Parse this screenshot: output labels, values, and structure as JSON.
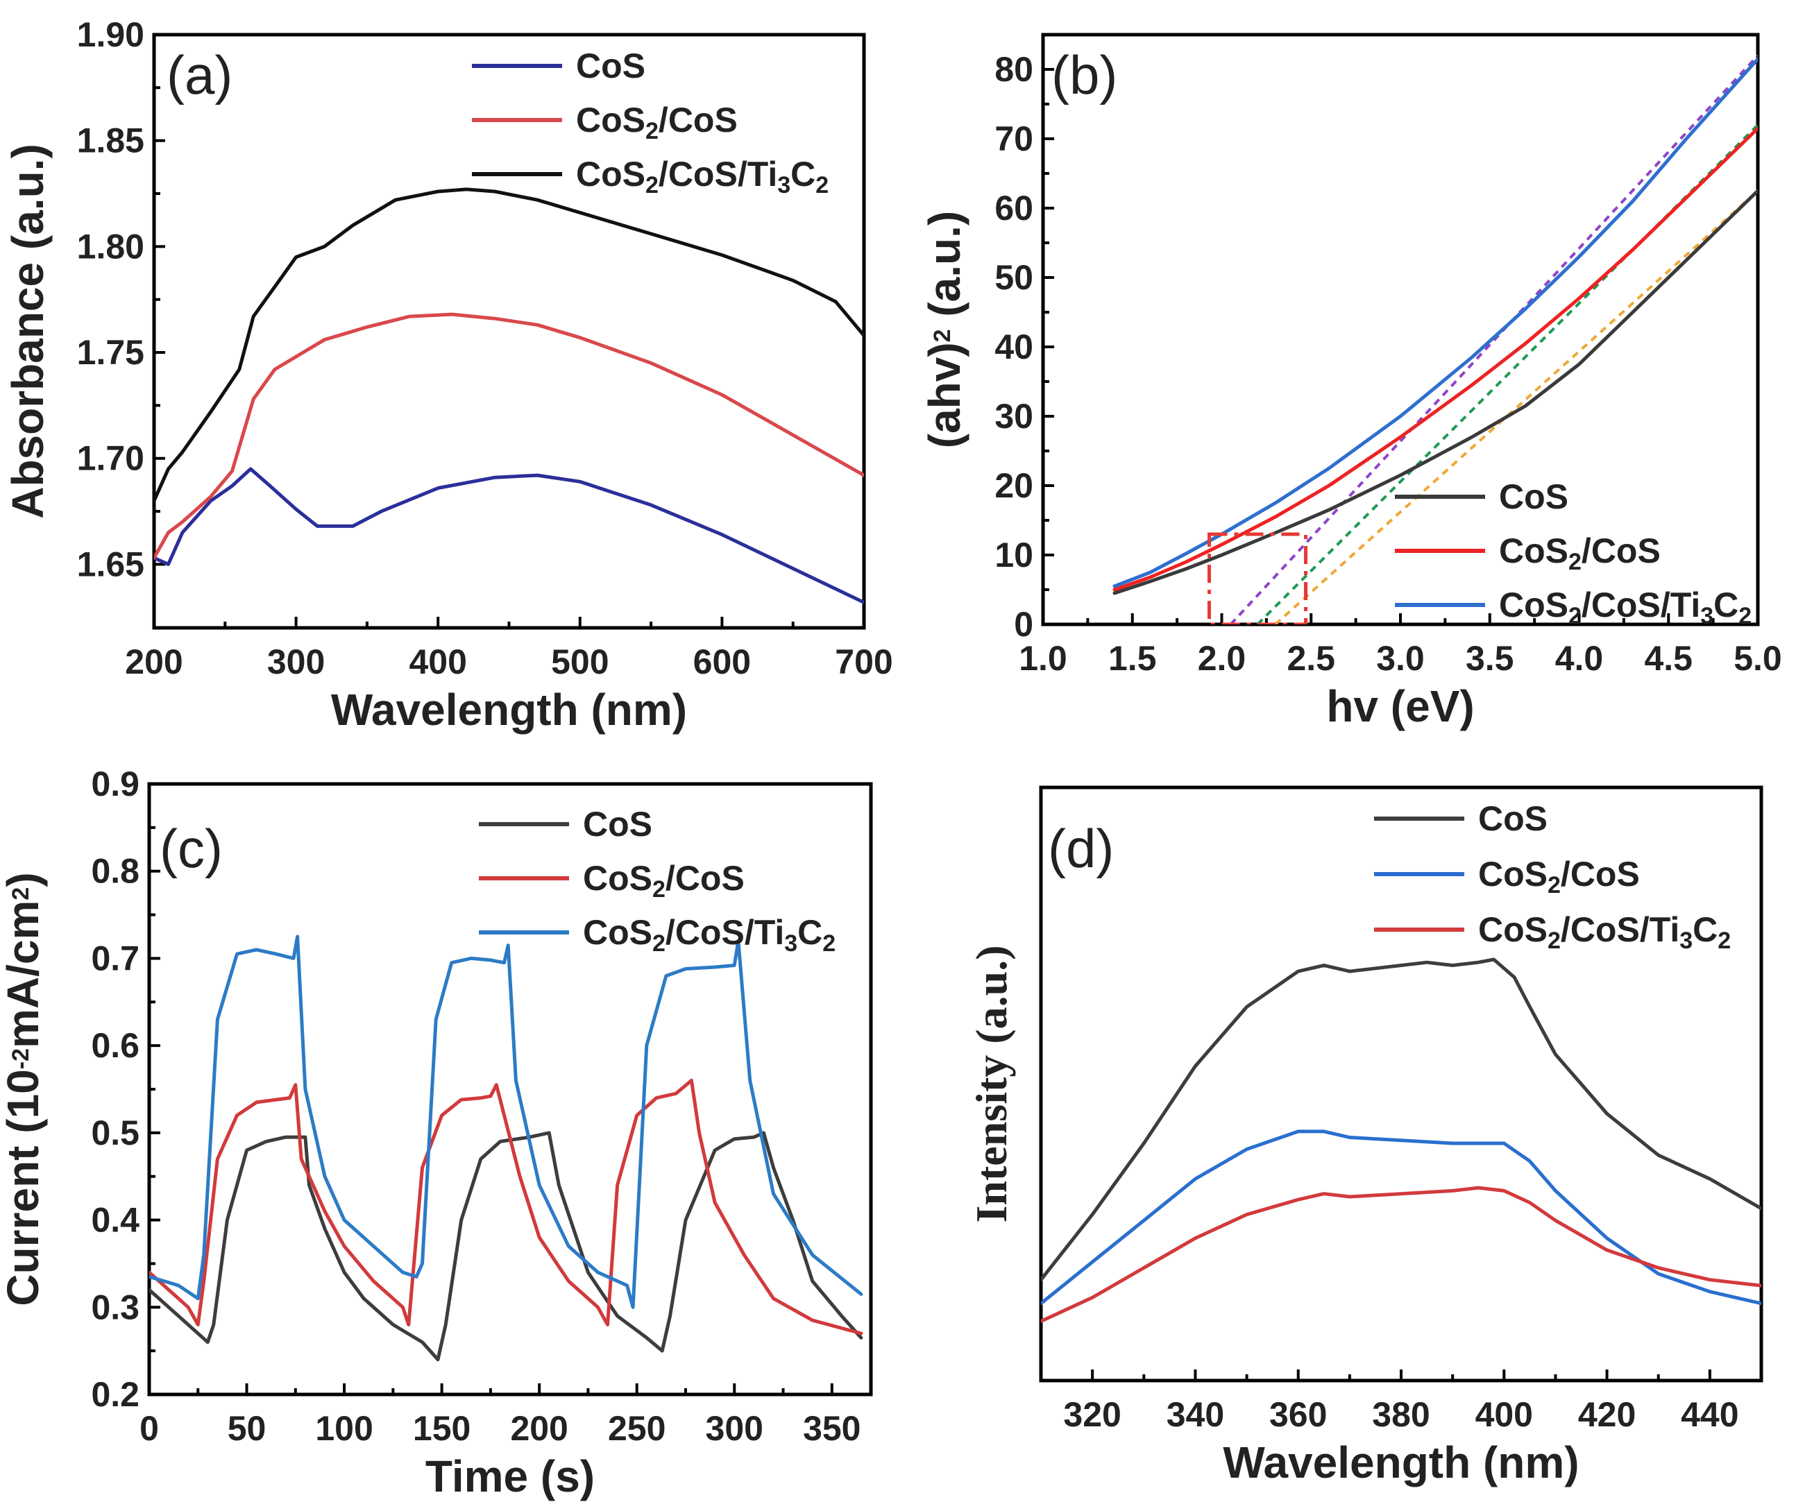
{
  "colors": {
    "cos_a": "#2b2f9a",
    "cos2cos_a": "#d9484b",
    "ti_a": "#111111",
    "cos_b": "#3a3a3a",
    "cos2cos_b": "#ee2222",
    "ti_b": "#2e6fcf",
    "cos_c": "#3d3d3d",
    "cos2cos_c": "#d23a3c",
    "ti_c": "#2c7bc6",
    "cos_d": "#3d3d3d",
    "cos2cos_d": "#2a6fcf",
    "ti_d": "#d23a3c",
    "fit_purple": "#8e44c8",
    "fit_green": "#1f9a55",
    "fit_orange": "#f0a838",
    "guide": "#e53935"
  },
  "chart_data": [
    {
      "id": "a",
      "panel_label": "(a)",
      "type": "line",
      "xlabel": "Wavelength (nm)",
      "ylabel": "Absorbance (a.u.)",
      "xlim": [
        200,
        700
      ],
      "ylim": [
        1.62,
        1.9
      ],
      "xticks": [
        200,
        300,
        400,
        500,
        600,
        700
      ],
      "yticks": [
        1.65,
        1.7,
        1.75,
        1.8,
        1.85,
        1.9
      ],
      "ytick_labels": [
        "1.65",
        "1.70",
        "1.75",
        "1.80",
        "1.85",
        "1.90"
      ],
      "legend": [
        {
          "label": "CoS",
          "sub": []
        },
        {
          "label": "CoS2/CoS",
          "sub": [
            {
              "t": "CoS"
            },
            {
              "t": "2",
              "sub": true
            },
            {
              "t": "/CoS"
            }
          ]
        },
        {
          "label": "CoS2/CoS/Ti3C2",
          "sub": [
            {
              "t": "CoS"
            },
            {
              "t": "2",
              "sub": true
            },
            {
              "t": "/CoS/Ti"
            },
            {
              "t": "3",
              "sub": true
            },
            {
              "t": "C"
            },
            {
              "t": "2",
              "sub": true
            }
          ]
        }
      ],
      "series": [
        {
          "name": "CoS",
          "x": [
            200,
            210,
            220,
            240,
            255,
            268,
            280,
            300,
            315,
            340,
            360,
            400,
            440,
            470,
            500,
            550,
            600,
            650,
            700
          ],
          "y": [
            1.653,
            1.65,
            1.665,
            1.68,
            1.687,
            1.695,
            1.688,
            1.676,
            1.668,
            1.668,
            1.675,
            1.686,
            1.691,
            1.692,
            1.689,
            1.678,
            1.664,
            1.648,
            1.632
          ]
        },
        {
          "name": "CoS2/CoS",
          "x": [
            200,
            210,
            220,
            240,
            255,
            270,
            285,
            300,
            320,
            350,
            380,
            410,
            440,
            470,
            500,
            550,
            600,
            650,
            700
          ],
          "y": [
            1.653,
            1.665,
            1.67,
            1.682,
            1.694,
            1.728,
            1.742,
            1.748,
            1.756,
            1.762,
            1.767,
            1.768,
            1.766,
            1.763,
            1.757,
            1.745,
            1.73,
            1.711,
            1.692
          ]
        },
        {
          "name": "CoS2/CoS/Ti3C2",
          "x": [
            200,
            210,
            220,
            240,
            260,
            270,
            285,
            300,
            320,
            340,
            370,
            400,
            420,
            440,
            470,
            500,
            550,
            600,
            650,
            680,
            700
          ],
          "y": [
            1.68,
            1.695,
            1.703,
            1.722,
            1.742,
            1.767,
            1.781,
            1.795,
            1.8,
            1.81,
            1.822,
            1.826,
            1.827,
            1.826,
            1.822,
            1.816,
            1.806,
            1.796,
            1.784,
            1.774,
            1.758
          ]
        }
      ]
    },
    {
      "id": "b",
      "panel_label": "(b)",
      "type": "line",
      "xlabel": "hv (eV)",
      "ylabel": "(ahv)2 (a.u.)",
      "xlim": [
        1.0,
        5.0
      ],
      "ylim": [
        0,
        85
      ],
      "xticks": [
        1.0,
        1.5,
        2.0,
        2.5,
        3.0,
        3.5,
        4.0,
        4.5,
        5.0
      ],
      "xtick_labels": [
        "1.0",
        "1.5",
        "2.0",
        "2.5",
        "3.0",
        "3.5",
        "4.0",
        "4.5",
        "5.0"
      ],
      "yticks": [
        0,
        10,
        20,
        30,
        40,
        50,
        60,
        70,
        80
      ],
      "legend": [
        {
          "label": "CoS",
          "sub": []
        },
        {
          "label": "CoS2/CoS",
          "sub": [
            {
              "t": "CoS"
            },
            {
              "t": "2",
              "sub": true
            },
            {
              "t": "/CoS"
            }
          ]
        },
        {
          "label": "CoS2/CoS/Ti3C2",
          "sub": [
            {
              "t": "CoS"
            },
            {
              "t": "2",
              "sub": true
            },
            {
              "t": "/CoS/Ti"
            },
            {
              "t": "3",
              "sub": true
            },
            {
              "t": "C"
            },
            {
              "t": "2",
              "sub": true
            }
          ]
        }
      ],
      "series": [
        {
          "name": "CoS",
          "x": [
            1.4,
            1.6,
            1.8,
            2.0,
            2.3,
            2.6,
            3.0,
            3.4,
            3.7,
            4.0,
            4.3,
            4.6,
            5.0
          ],
          "y": [
            4.5,
            6.2,
            8.0,
            10.0,
            13.2,
            16.5,
            21.5,
            27.0,
            31.5,
            37.5,
            45.0,
            52.5,
            62.5
          ]
        },
        {
          "name": "CoS2/CoS",
          "x": [
            1.4,
            1.6,
            1.8,
            2.0,
            2.3,
            2.6,
            3.0,
            3.4,
            3.7,
            4.0,
            4.3,
            4.6,
            5.0
          ],
          "y": [
            5.0,
            6.8,
            9.0,
            11.5,
            15.5,
            20.0,
            27.0,
            34.5,
            40.5,
            47.0,
            54.0,
            61.5,
            71.5
          ]
        },
        {
          "name": "CoS2/CoS/Ti3C2",
          "x": [
            1.4,
            1.6,
            1.8,
            2.0,
            2.3,
            2.6,
            3.0,
            3.4,
            3.7,
            4.0,
            4.3,
            4.6,
            5.0
          ],
          "y": [
            5.5,
            7.5,
            10.2,
            13.0,
            17.5,
            22.5,
            30.0,
            38.5,
            45.5,
            53.0,
            61.0,
            70.0,
            81.5
          ]
        }
      ],
      "tangent_fits": [
        {
          "name": "purple",
          "x": [
            2.05,
            5.0
          ],
          "y": [
            0,
            82
          ]
        },
        {
          "name": "green",
          "x": [
            2.2,
            5.0
          ],
          "y": [
            0,
            72
          ]
        },
        {
          "name": "orange",
          "x": [
            2.3,
            5.0
          ],
          "y": [
            0,
            62.5
          ]
        }
      ],
      "highlight_box": {
        "x": [
          1.93,
          2.47
        ],
        "y": [
          0,
          13
        ]
      }
    },
    {
      "id": "c",
      "panel_label": "(c)",
      "type": "line",
      "xlabel": "Time (s)",
      "ylabel": "Current (10-2mA/cm2)",
      "xlim": [
        0,
        370
      ],
      "ylim": [
        0.2,
        0.9
      ],
      "xticks": [
        0,
        50,
        100,
        150,
        200,
        250,
        300,
        350
      ],
      "yticks": [
        0.2,
        0.3,
        0.4,
        0.5,
        0.6,
        0.7,
        0.8,
        0.9
      ],
      "ytick_labels": [
        "0.2",
        "0.3",
        "0.4",
        "0.5",
        "0.6",
        "0.7",
        "0.8",
        "0.9"
      ],
      "legend": [
        {
          "label": "CoS",
          "sub": []
        },
        {
          "label": "CoS2/CoS",
          "sub": [
            {
              "t": "CoS"
            },
            {
              "t": "2",
              "sub": true
            },
            {
              "t": "/CoS"
            }
          ]
        },
        {
          "label": "CoS2/CoS/Ti3C2",
          "sub": [
            {
              "t": "CoS"
            },
            {
              "t": "2",
              "sub": true
            },
            {
              "t": "/CoS/Ti"
            },
            {
              "t": "3",
              "sub": true
            },
            {
              "t": "C"
            },
            {
              "t": "2",
              "sub": true
            }
          ]
        }
      ],
      "series": [
        {
          "name": "CoS",
          "x": [
            0,
            15,
            30,
            33,
            40,
            50,
            60,
            70,
            80,
            82,
            90,
            100,
            110,
            125,
            140,
            148,
            152,
            160,
            170,
            180,
            195,
            205,
            210,
            225,
            240,
            255,
            263,
            267,
            275,
            290,
            300,
            310,
            315,
            320,
            330,
            340,
            355,
            365
          ],
          "y": [
            0.32,
            0.29,
            0.26,
            0.28,
            0.4,
            0.48,
            0.49,
            0.495,
            0.495,
            0.44,
            0.39,
            0.34,
            0.31,
            0.28,
            0.26,
            0.24,
            0.28,
            0.4,
            0.47,
            0.49,
            0.495,
            0.5,
            0.44,
            0.34,
            0.29,
            0.265,
            0.25,
            0.29,
            0.4,
            0.48,
            0.493,
            0.495,
            0.5,
            0.46,
            0.4,
            0.33,
            0.29,
            0.265
          ]
        },
        {
          "name": "CoS2/CoS",
          "x": [
            0,
            10,
            20,
            25,
            28,
            35,
            45,
            55,
            65,
            72,
            75,
            78,
            90,
            100,
            115,
            130,
            133,
            140,
            150,
            160,
            170,
            175,
            178,
            190,
            200,
            215,
            230,
            235,
            240,
            250,
            260,
            270,
            278,
            282,
            290,
            305,
            320,
            340,
            365
          ],
          "y": [
            0.34,
            0.32,
            0.3,
            0.28,
            0.33,
            0.47,
            0.52,
            0.535,
            0.538,
            0.54,
            0.555,
            0.47,
            0.41,
            0.37,
            0.33,
            0.3,
            0.28,
            0.46,
            0.52,
            0.538,
            0.54,
            0.542,
            0.555,
            0.45,
            0.38,
            0.33,
            0.3,
            0.28,
            0.44,
            0.52,
            0.54,
            0.545,
            0.56,
            0.5,
            0.42,
            0.36,
            0.31,
            0.285,
            0.27
          ]
        },
        {
          "name": "CoS2/CoS/Ti3C2",
          "x": [
            0,
            15,
            25,
            28,
            35,
            45,
            55,
            65,
            74,
            76,
            80,
            90,
            100,
            115,
            130,
            137,
            140,
            147,
            155,
            165,
            175,
            182,
            184,
            188,
            200,
            215,
            230,
            245,
            248,
            255,
            265,
            275,
            290,
            300,
            302,
            308,
            320,
            340,
            365
          ],
          "y": [
            0.335,
            0.325,
            0.31,
            0.36,
            0.63,
            0.705,
            0.71,
            0.705,
            0.7,
            0.725,
            0.55,
            0.45,
            0.4,
            0.37,
            0.34,
            0.335,
            0.35,
            0.63,
            0.695,
            0.7,
            0.698,
            0.695,
            0.715,
            0.56,
            0.44,
            0.37,
            0.34,
            0.325,
            0.3,
            0.6,
            0.68,
            0.688,
            0.69,
            0.692,
            0.72,
            0.56,
            0.43,
            0.36,
            0.315
          ]
        }
      ]
    },
    {
      "id": "d",
      "panel_label": "(d)",
      "type": "line",
      "xlabel": "Wavelength (nm)",
      "ylabel": "Intensity (a.u.)",
      "xlim": [
        310,
        450
      ],
      "ylim": [
        0,
        1
      ],
      "xticks": [
        320,
        340,
        360,
        380,
        400,
        420,
        440
      ],
      "legend": [
        {
          "label": "CoS",
          "sub": []
        },
        {
          "label": "CoS2/CoS",
          "sub": [
            {
              "t": "CoS"
            },
            {
              "t": "2",
              "sub": true
            },
            {
              "t": "/CoS"
            }
          ]
        },
        {
          "label": "CoS2/CoS/Ti3C2",
          "sub": [
            {
              "t": "CoS"
            },
            {
              "t": "2",
              "sub": true
            },
            {
              "t": "/CoS/Ti"
            },
            {
              "t": "3",
              "sub": true
            },
            {
              "t": "C"
            },
            {
              "t": "2",
              "sub": true
            }
          ]
        }
      ],
      "series": [
        {
          "name": "CoS",
          "x": [
            310,
            320,
            330,
            340,
            350,
            360,
            365,
            370,
            375,
            380,
            385,
            390,
            395,
            398,
            402,
            405,
            410,
            420,
            430,
            440,
            450
          ],
          "y": [
            0.17,
            0.28,
            0.4,
            0.53,
            0.63,
            0.69,
            0.7,
            0.69,
            0.695,
            0.7,
            0.705,
            0.7,
            0.705,
            0.71,
            0.68,
            0.63,
            0.55,
            0.45,
            0.38,
            0.34,
            0.29
          ]
        },
        {
          "name": "CoS2/CoS",
          "x": [
            310,
            320,
            330,
            340,
            350,
            360,
            365,
            370,
            380,
            390,
            395,
            400,
            405,
            410,
            420,
            430,
            440,
            450
          ],
          "y": [
            0.13,
            0.2,
            0.27,
            0.34,
            0.39,
            0.42,
            0.42,
            0.41,
            0.405,
            0.4,
            0.4,
            0.4,
            0.37,
            0.32,
            0.24,
            0.18,
            0.15,
            0.13
          ]
        },
        {
          "name": "CoS2/CoS/Ti3C2",
          "x": [
            310,
            320,
            330,
            340,
            350,
            360,
            365,
            370,
            380,
            390,
            395,
            400,
            405,
            410,
            420,
            430,
            440,
            450
          ],
          "y": [
            0.1,
            0.14,
            0.19,
            0.24,
            0.28,
            0.305,
            0.315,
            0.31,
            0.315,
            0.32,
            0.325,
            0.32,
            0.3,
            0.27,
            0.22,
            0.19,
            0.17,
            0.16
          ]
        }
      ]
    }
  ]
}
